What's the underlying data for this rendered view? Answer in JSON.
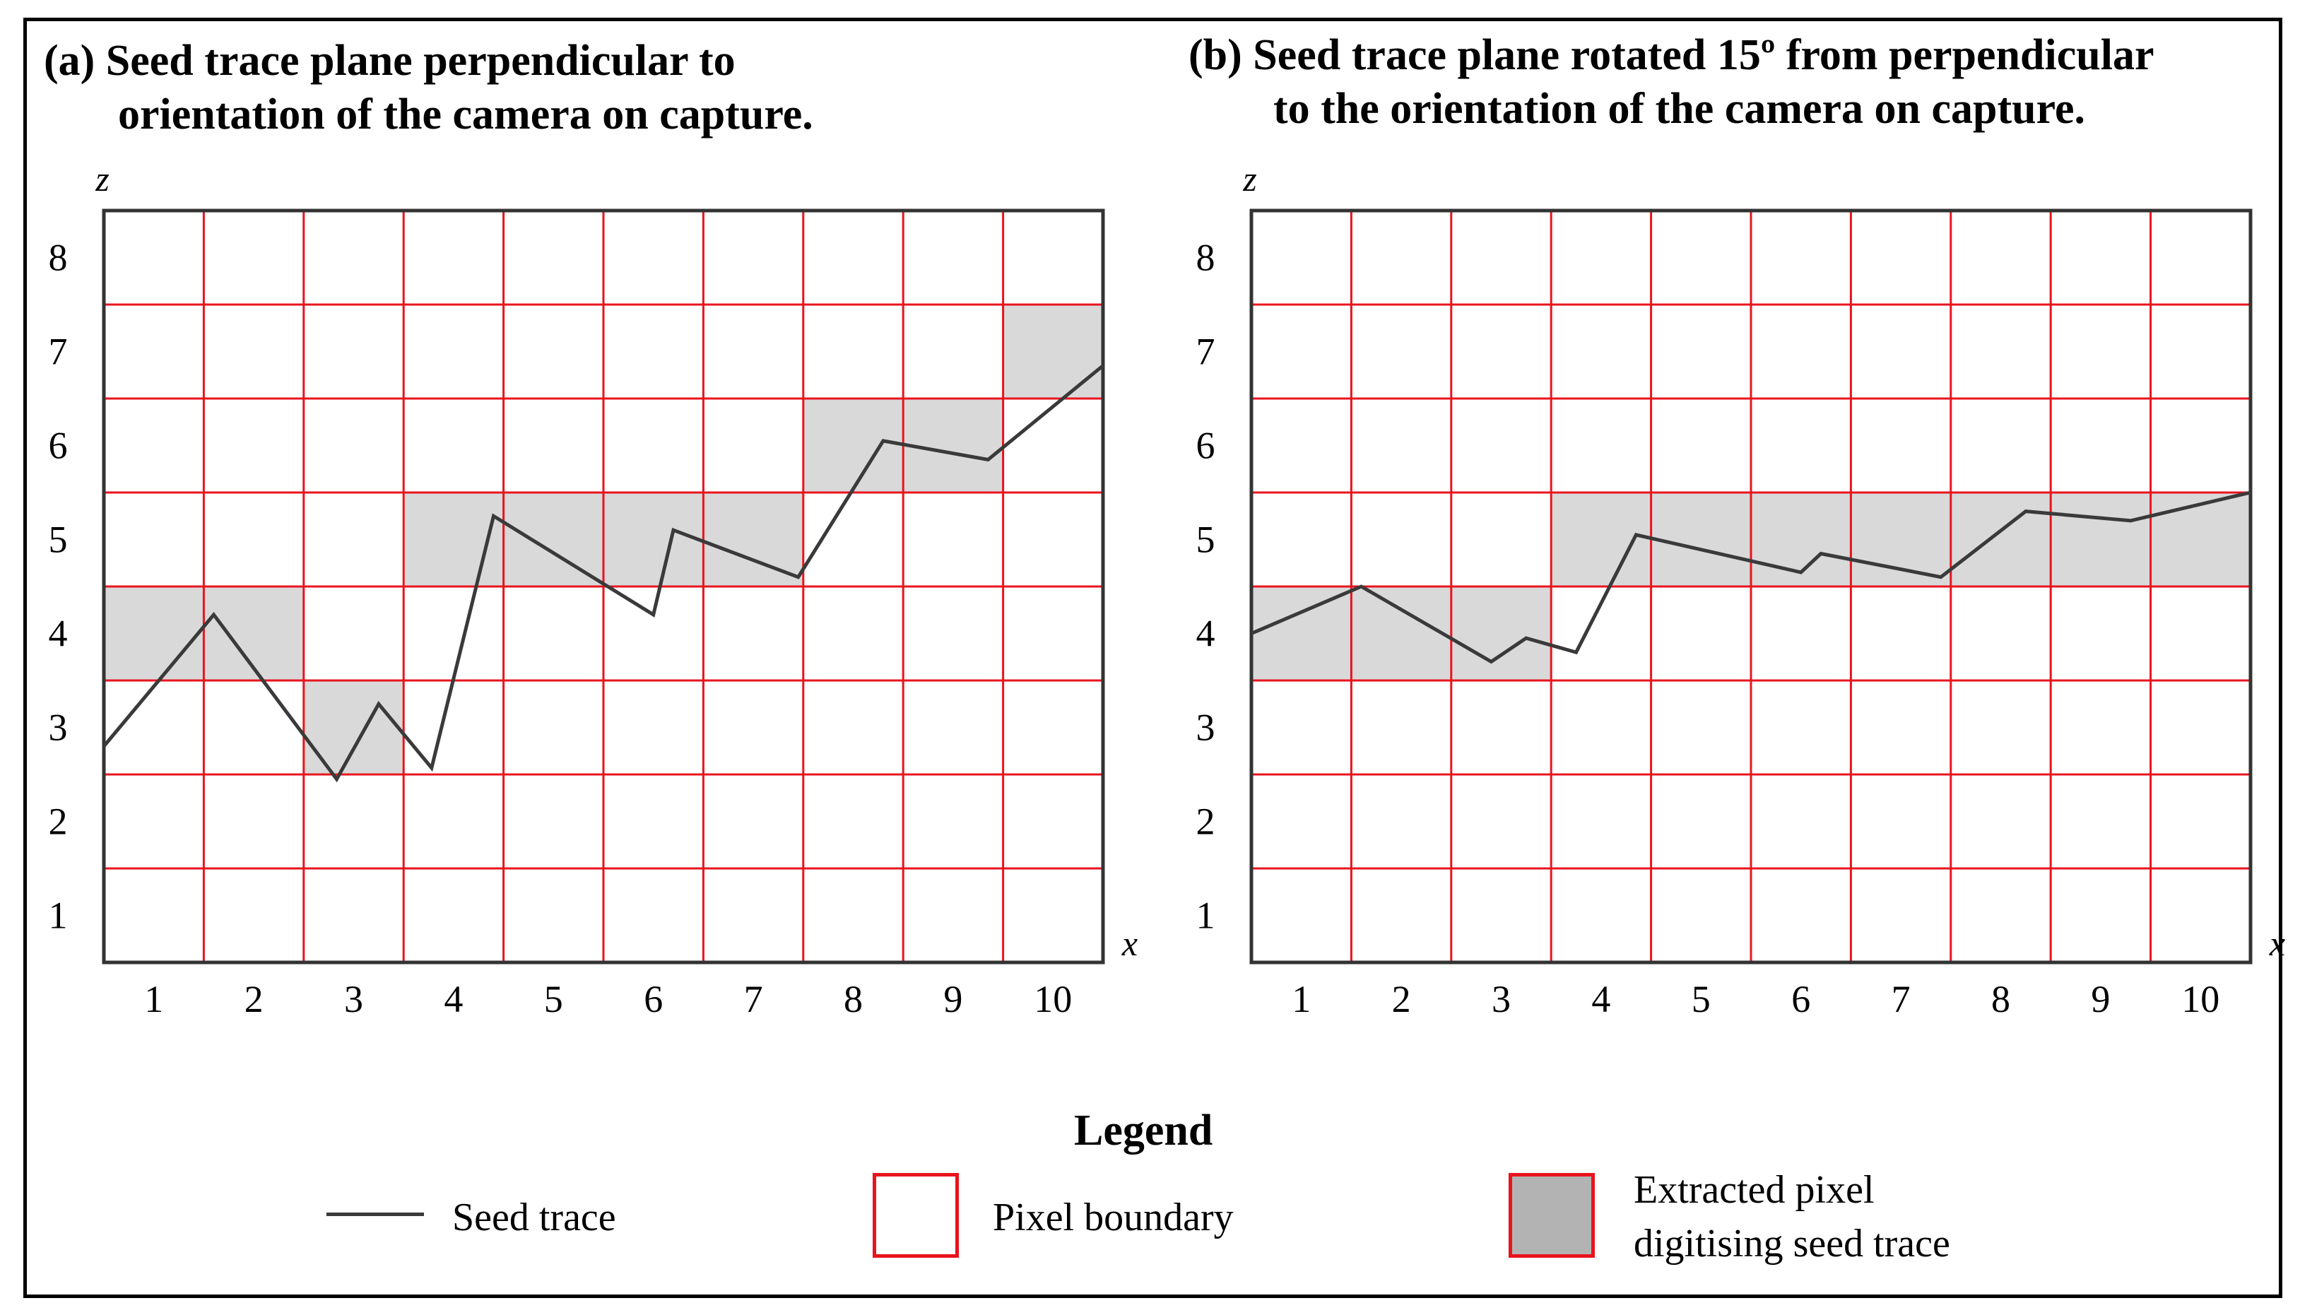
{
  "panel_a": {
    "title_line1": "(a) Seed trace plane perpendicular to",
    "title_line2": "orientation of the camera on capture."
  },
  "panel_b": {
    "title_line1": "(b)  Seed trace plane rotated 15º from perpendicular",
    "title_line2": "to the orientation of the camera on capture."
  },
  "legend": {
    "title": "Legend",
    "trace_label": "Seed trace",
    "boundary_label": "Pixel boundary",
    "extracted_label_line1": "Extracted pixel",
    "extracted_label_line2": "digitising seed trace"
  },
  "colors": {
    "grid": "#e8141e",
    "extracted_fill": "#d9d9d9",
    "legend_fill": "#b3b3b3",
    "trace": "#3a3a3a",
    "axis": "#333333"
  },
  "chart_data": [
    {
      "type": "line",
      "title": "(a) Seed trace plane perpendicular to orientation of the camera on capture.",
      "xlabel": "x",
      "ylabel": "z",
      "x_ticks": [
        "1",
        "2",
        "3",
        "4",
        "5",
        "6",
        "7",
        "8",
        "9",
        "10"
      ],
      "z_ticks": [
        "1",
        "2",
        "3",
        "4",
        "5",
        "6",
        "7",
        "8"
      ],
      "xlim": [
        0.5,
        10.5
      ],
      "ylim": [
        0.5,
        8.5
      ],
      "grid": true,
      "extracted_pixels": [
        {
          "x": 1,
          "z": 4
        },
        {
          "x": 2,
          "z": 4
        },
        {
          "x": 3,
          "z": 3
        },
        {
          "x": 4,
          "z": 5
        },
        {
          "x": 5,
          "z": 5
        },
        {
          "x": 6,
          "z": 5
        },
        {
          "x": 7,
          "z": 5
        },
        {
          "x": 8,
          "z": 6
        },
        {
          "x": 9,
          "z": 6
        },
        {
          "x": 10,
          "z": 7
        }
      ],
      "seed_trace": [
        [
          0.5,
          2.8
        ],
        [
          1.6,
          4.2
        ],
        [
          2.83,
          2.45
        ],
        [
          3.25,
          3.25
        ],
        [
          3.78,
          2.57
        ],
        [
          4.4,
          5.25
        ],
        [
          6.0,
          4.2
        ],
        [
          6.2,
          5.1
        ],
        [
          7.45,
          4.6
        ],
        [
          8.3,
          6.05
        ],
        [
          9.35,
          5.85
        ],
        [
          10.5,
          6.85
        ]
      ]
    },
    {
      "type": "line",
      "title": "(b) Seed trace plane rotated 15º from perpendicular to the orientation of the camera on capture.",
      "xlabel": "x",
      "ylabel": "z",
      "x_ticks": [
        "1",
        "2",
        "3",
        "4",
        "5",
        "6",
        "7",
        "8",
        "9",
        "10"
      ],
      "z_ticks": [
        "1",
        "2",
        "3",
        "4",
        "5",
        "6",
        "7",
        "8"
      ],
      "xlim": [
        0.5,
        10.5
      ],
      "ylim": [
        0.5,
        8.5
      ],
      "grid": true,
      "extracted_pixels": [
        {
          "x": 1,
          "z": 4
        },
        {
          "x": 2,
          "z": 4
        },
        {
          "x": 3,
          "z": 4
        },
        {
          "x": 4,
          "z": 5
        },
        {
          "x": 5,
          "z": 5
        },
        {
          "x": 6,
          "z": 5
        },
        {
          "x": 7,
          "z": 5
        },
        {
          "x": 8,
          "z": 5
        },
        {
          "x": 9,
          "z": 5
        },
        {
          "x": 10,
          "z": 5
        }
      ],
      "seed_trace": [
        [
          0.5,
          4.0
        ],
        [
          1.6,
          4.5
        ],
        [
          2.9,
          3.7
        ],
        [
          3.25,
          3.95
        ],
        [
          3.75,
          3.8
        ],
        [
          4.35,
          5.05
        ],
        [
          6.0,
          4.65
        ],
        [
          6.2,
          4.85
        ],
        [
          7.4,
          4.6
        ],
        [
          8.25,
          5.3
        ],
        [
          9.3,
          5.2
        ],
        [
          10.5,
          5.5
        ]
      ]
    }
  ]
}
